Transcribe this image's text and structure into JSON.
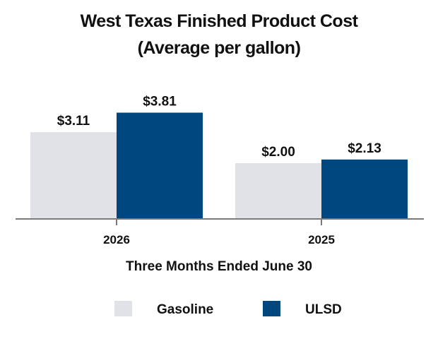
{
  "chart_data": {
    "type": "bar",
    "title_line1": "West Texas Finished Product Cost",
    "title_line2": "(Average per gallon)",
    "xlabel": "Three Months Ended June 30",
    "ylabel": "",
    "categories": [
      "2026",
      "2025"
    ],
    "series": [
      {
        "name": "Gasoline",
        "color": "#e1e2e7",
        "values": [
          3.11,
          2.0
        ],
        "labels": [
          "$3.11",
          "$2.00"
        ]
      },
      {
        "name": "ULSD",
        "color": "#00467f",
        "values": [
          3.81,
          2.13
        ],
        "labels": [
          "$3.81",
          "$2.13"
        ]
      }
    ],
    "ylim": [
      0,
      4.5
    ],
    "grid": false,
    "legend_position": "bottom"
  }
}
